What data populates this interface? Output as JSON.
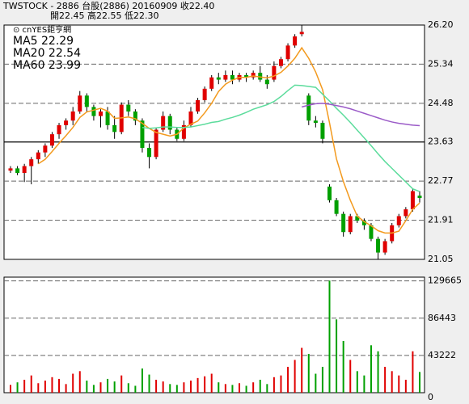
{
  "chart_data": {
    "type": "candlestick",
    "title": "TWSTOCK - 2886 台股(2886) 20160909 收22.40",
    "subtitle": "開22.45 高22.55 低22.30",
    "source": "⊙ cnYES鉅亨網",
    "up_color": "#e00000",
    "down_color": "#00a000",
    "open": [
      23.0,
      23.05,
      22.95,
      23.1,
      23.25,
      23.4,
      23.55,
      23.8,
      24.0,
      24.1,
      24.3,
      24.65,
      24.4,
      24.2,
      24.3,
      24.0,
      23.85,
      24.45,
      24.3,
      24.1,
      23.5,
      23.3,
      23.9,
      24.2,
      23.9,
      23.7,
      24.0,
      24.3,
      24.55,
      24.8,
      25.05,
      25.0,
      25.1,
      25.0,
      25.1,
      25.05,
      25.15,
      25.0,
      25.0,
      25.3,
      25.45,
      25.75,
      26.0,
      24.65,
      24.1,
      24.05,
      22.65,
      22.35,
      22.05,
      21.65,
      22.0,
      21.9,
      21.8,
      21.5,
      21.2,
      21.45,
      21.8,
      22.0,
      22.15,
      22.45
    ],
    "high": [
      23.1,
      23.1,
      23.15,
      23.3,
      23.45,
      23.6,
      23.85,
      24.05,
      24.15,
      24.4,
      24.75,
      24.7,
      24.45,
      24.35,
      24.4,
      24.2,
      24.5,
      24.55,
      24.35,
      24.15,
      23.6,
      23.95,
      24.3,
      24.25,
      23.95,
      24.1,
      24.4,
      24.6,
      24.85,
      25.1,
      25.15,
      25.2,
      25.2,
      25.15,
      25.15,
      25.2,
      25.3,
      25.1,
      25.4,
      25.5,
      25.8,
      26.0,
      26.2,
      24.7,
      24.2,
      24.1,
      22.7,
      22.4,
      22.1,
      22.05,
      22.05,
      21.95,
      21.85,
      21.55,
      21.5,
      21.85,
      22.05,
      22.2,
      22.6,
      22.55
    ],
    "low": [
      22.95,
      22.9,
      22.75,
      22.7,
      23.15,
      23.3,
      23.5,
      23.7,
      23.9,
      24.0,
      24.25,
      24.3,
      24.1,
      23.95,
      23.9,
      23.7,
      23.8,
      24.2,
      24.0,
      23.4,
      23.05,
      23.25,
      23.85,
      23.8,
      23.65,
      23.65,
      23.95,
      24.25,
      24.5,
      24.75,
      24.9,
      24.95,
      24.9,
      24.95,
      24.95,
      25.0,
      24.95,
      24.8,
      24.95,
      25.25,
      25.4,
      25.7,
      25.95,
      24.0,
      23.95,
      23.6,
      22.3,
      22.0,
      21.55,
      21.6,
      21.85,
      21.7,
      21.45,
      21.05,
      21.15,
      21.4,
      21.75,
      21.95,
      22.1,
      22.3
    ],
    "close": [
      23.05,
      22.95,
      23.1,
      23.25,
      23.4,
      23.55,
      23.8,
      24.0,
      24.1,
      24.3,
      24.65,
      24.4,
      24.2,
      24.3,
      24.0,
      23.85,
      24.45,
      24.3,
      24.1,
      23.5,
      23.3,
      23.9,
      24.2,
      23.9,
      23.7,
      24.0,
      24.3,
      24.55,
      24.8,
      25.05,
      25.0,
      25.1,
      25.0,
      25.1,
      25.05,
      25.15,
      25.0,
      24.9,
      25.3,
      25.45,
      25.75,
      25.95,
      26.05,
      24.1,
      24.05,
      23.7,
      22.35,
      22.05,
      21.65,
      22.0,
      21.9,
      21.8,
      21.5,
      21.2,
      21.45,
      21.8,
      22.0,
      22.15,
      22.55,
      22.4
    ],
    "volume": [
      9000,
      12000,
      15000,
      20000,
      11000,
      14000,
      18000,
      16000,
      10000,
      22000,
      25000,
      14000,
      9000,
      12000,
      16000,
      13000,
      20000,
      11000,
      8000,
      28000,
      21000,
      15000,
      13000,
      10000,
      9000,
      12000,
      14000,
      17000,
      19000,
      22000,
      12000,
      10000,
      9000,
      11000,
      8000,
      12000,
      15000,
      10000,
      18000,
      20000,
      30000,
      38000,
      52000,
      45000,
      22000,
      30000,
      130000,
      85000,
      60000,
      38000,
      25000,
      20000,
      55000,
      48000,
      30000,
      25000,
      20000,
      15000,
      48000,
      24000
    ],
    "ylim": [
      21.05,
      26.2
    ],
    "yticks": [
      {
        "value": 21.05,
        "label": "21.05"
      },
      {
        "value": 21.91,
        "label": "21.91"
      },
      {
        "value": 22.77,
        "label": "22.77"
      },
      {
        "value": 23.63,
        "label": "23.63"
      },
      {
        "value": 24.48,
        "label": "24.48"
      },
      {
        "value": 25.34,
        "label": "25.34"
      },
      {
        "value": 26.2,
        "label": "26.20"
      }
    ],
    "volume_ylim": [
      0,
      134000
    ],
    "volume_yticks": [
      0,
      43222,
      86443,
      129665
    ],
    "series": [
      {
        "name": "MA5 22.29",
        "color": "#f39a1e",
        "values": [
          null,
          null,
          null,
          null,
          23.15,
          23.25,
          23.42,
          23.6,
          23.77,
          23.95,
          24.17,
          24.29,
          24.33,
          24.37,
          24.31,
          24.15,
          24.16,
          24.18,
          24.14,
          24.04,
          23.93,
          23.84,
          23.8,
          23.76,
          23.8,
          23.94,
          24.02,
          24.09,
          24.27,
          24.48,
          24.74,
          24.9,
          24.99,
          25.05,
          25.05,
          25.08,
          25.06,
          25.04,
          25.08,
          25.16,
          25.3,
          25.47,
          25.7,
          25.47,
          25.17,
          24.78,
          24.05,
          23.26,
          22.76,
          22.35,
          22.0,
          21.88,
          21.79,
          21.68,
          21.63,
          21.63,
          21.67,
          21.9,
          22.15,
          22.29
        ]
      },
      {
        "name": "MA20 22.54",
        "color": "#5cdc9c",
        "values": [
          null,
          null,
          null,
          null,
          null,
          null,
          null,
          null,
          null,
          null,
          null,
          null,
          null,
          null,
          null,
          null,
          null,
          null,
          null,
          23.95,
          23.93,
          23.94,
          23.96,
          23.96,
          23.95,
          23.95,
          23.96,
          23.99,
          24.02,
          24.06,
          24.08,
          24.13,
          24.17,
          24.22,
          24.28,
          24.35,
          24.4,
          24.45,
          24.52,
          24.63,
          24.76,
          24.88,
          24.87,
          24.85,
          24.83,
          24.68,
          24.53,
          24.37,
          24.22,
          24.06,
          23.89,
          23.72,
          23.55,
          23.37,
          23.2,
          23.05,
          22.9,
          22.75,
          22.6,
          22.54
        ]
      },
      {
        "name": "MA60 23.99",
        "color": "#9b5bc8",
        "values": [
          null,
          null,
          null,
          null,
          null,
          null,
          null,
          null,
          null,
          null,
          null,
          null,
          null,
          null,
          null,
          null,
          null,
          null,
          null,
          null,
          null,
          null,
          null,
          null,
          null,
          null,
          null,
          null,
          null,
          null,
          null,
          null,
          null,
          null,
          null,
          null,
          null,
          null,
          null,
          null,
          null,
          null,
          24.4,
          24.44,
          24.47,
          24.48,
          24.46,
          24.43,
          24.4,
          24.36,
          24.31,
          24.26,
          24.21,
          24.16,
          24.11,
          24.07,
          24.04,
          24.02,
          24.0,
          23.99
        ]
      }
    ]
  }
}
